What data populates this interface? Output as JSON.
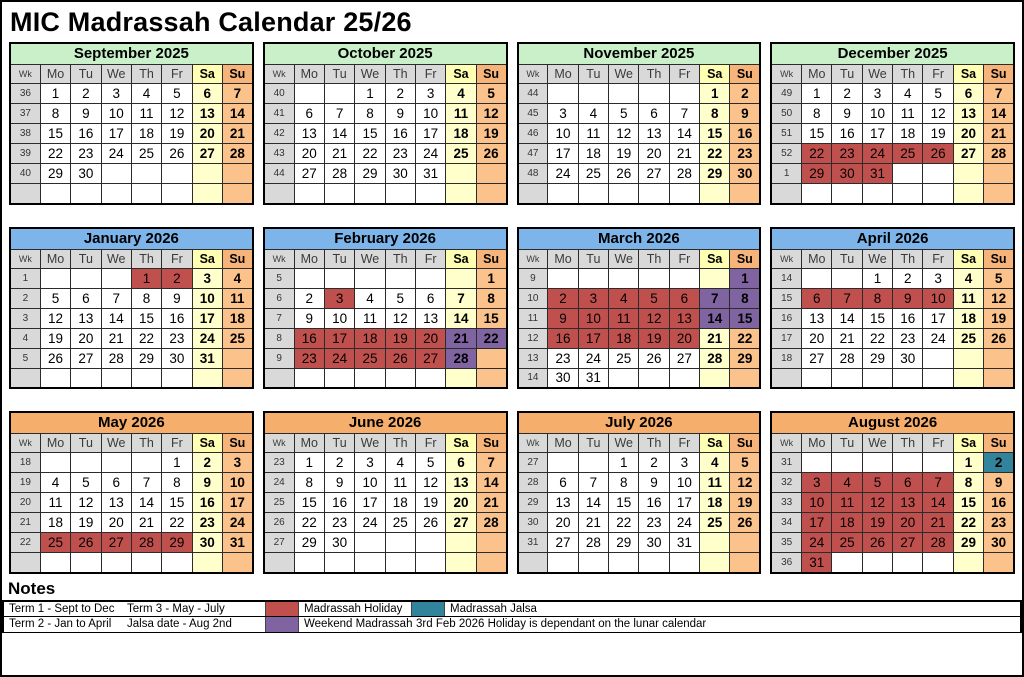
{
  "page_title": "MIC Madrassah Calendar 25/26",
  "colors": {
    "green": "#c9f0c9",
    "blue": "#7db5ea",
    "orange": "#f6ae6d",
    "saturday_header": "#ffffb3",
    "saturday_cell": "#ffffcc",
    "sunday_header": "#f6b47a",
    "sunday_cell": "#fbc28b",
    "week_column_gray": "#d9d9d9",
    "holiday_red": "#c0504d",
    "weekend_madrassah_purple": "#8064a2",
    "jalsa_teal": "#31849b"
  },
  "legend_codes": {
    "R": "madrassah-holiday",
    "P": "weekend-madrassah",
    "T": "madrassah-jalsa"
  },
  "day_headers": [
    "Wk",
    "Mo",
    "Tu",
    "We",
    "Th",
    "Fr",
    "Sa",
    "Su"
  ],
  "months": [
    {
      "name": "September 2025",
      "header_color": "green",
      "weeks": [
        {
          "wk": "36",
          "days": [
            "1",
            "2",
            "3",
            "4",
            "5",
            "6",
            "7"
          ]
        },
        {
          "wk": "37",
          "days": [
            "8",
            "9",
            "10",
            "11",
            "12",
            "13",
            "14"
          ]
        },
        {
          "wk": "38",
          "days": [
            "15",
            "16",
            "17",
            "18",
            "19",
            "20",
            "21"
          ]
        },
        {
          "wk": "39",
          "days": [
            "22",
            "23",
            "24",
            "25",
            "26",
            "27",
            "28"
          ]
        },
        {
          "wk": "40",
          "days": [
            "29",
            "30",
            "",
            "",
            "",
            "",
            ""
          ]
        },
        {
          "wk": "",
          "days": [
            "",
            "",
            "",
            "",
            "",
            "",
            ""
          ]
        }
      ]
    },
    {
      "name": "October 2025",
      "header_color": "green",
      "weeks": [
        {
          "wk": "40",
          "days": [
            "",
            "",
            "1",
            "2",
            "3",
            "4",
            "5"
          ]
        },
        {
          "wk": "41",
          "days": [
            "6",
            "7",
            "8",
            "9",
            "10",
            "11",
            "12"
          ]
        },
        {
          "wk": "42",
          "days": [
            "13",
            "14",
            "15",
            "16",
            "17",
            "18",
            "19"
          ]
        },
        {
          "wk": "43",
          "days": [
            "20",
            "21",
            "22",
            "23",
            "24",
            "25",
            "26"
          ]
        },
        {
          "wk": "44",
          "days": [
            "27",
            "28",
            "29",
            "30",
            "31",
            "",
            ""
          ]
        },
        {
          "wk": "",
          "days": [
            "",
            "",
            "",
            "",
            "",
            "",
            ""
          ]
        }
      ]
    },
    {
      "name": "November 2025",
      "header_color": "green",
      "weeks": [
        {
          "wk": "44",
          "days": [
            "",
            "",
            "",
            "",
            "",
            "1",
            "2"
          ]
        },
        {
          "wk": "45",
          "days": [
            "3",
            "4",
            "5",
            "6",
            "7",
            "8",
            "9"
          ]
        },
        {
          "wk": "46",
          "days": [
            "10",
            "11",
            "12",
            "13",
            "14",
            "15",
            "16"
          ]
        },
        {
          "wk": "47",
          "days": [
            "17",
            "18",
            "19",
            "20",
            "21",
            "22",
            "23"
          ]
        },
        {
          "wk": "48",
          "days": [
            "24",
            "25",
            "26",
            "27",
            "28",
            "29",
            "30"
          ]
        },
        {
          "wk": "",
          "days": [
            "",
            "",
            "",
            "",
            "",
            "",
            ""
          ]
        }
      ]
    },
    {
      "name": "December 2025",
      "header_color": "green",
      "weeks": [
        {
          "wk": "49",
          "days": [
            "1",
            "2",
            "3",
            "4",
            "5",
            "6",
            "7"
          ]
        },
        {
          "wk": "50",
          "days": [
            "8",
            "9",
            "10",
            "11",
            "12",
            "13",
            "14"
          ]
        },
        {
          "wk": "51",
          "days": [
            "15",
            "16",
            "17",
            "18",
            "19",
            "20",
            "21"
          ]
        },
        {
          "wk": "52",
          "days": [
            "22R",
            "23R",
            "24R",
            "25R",
            "26R",
            "27",
            "28"
          ]
        },
        {
          "wk": "1",
          "days": [
            "29R",
            "30R",
            "31R",
            "",
            "",
            "",
            ""
          ]
        },
        {
          "wk": "",
          "days": [
            "",
            "",
            "",
            "",
            "",
            "",
            ""
          ]
        }
      ]
    },
    {
      "name": "January 2026",
      "header_color": "blue",
      "weeks": [
        {
          "wk": "1",
          "days": [
            "",
            "",
            "",
            "1R",
            "2R",
            "3",
            "4"
          ]
        },
        {
          "wk": "2",
          "days": [
            "5",
            "6",
            "7",
            "8",
            "9",
            "10",
            "11"
          ]
        },
        {
          "wk": "3",
          "days": [
            "12",
            "13",
            "14",
            "15",
            "16",
            "17",
            "18"
          ]
        },
        {
          "wk": "4",
          "days": [
            "19",
            "20",
            "21",
            "22",
            "23",
            "24",
            "25"
          ]
        },
        {
          "wk": "5",
          "days": [
            "26",
            "27",
            "28",
            "29",
            "30",
            "31",
            ""
          ]
        },
        {
          "wk": "",
          "days": [
            "",
            "",
            "",
            "",
            "",
            "",
            ""
          ]
        }
      ]
    },
    {
      "name": "February 2026",
      "header_color": "blue",
      "weeks": [
        {
          "wk": "5",
          "days": [
            "",
            "",
            "",
            "",
            "",
            "",
            "1"
          ]
        },
        {
          "wk": "6",
          "days": [
            "2",
            "3R",
            "4",
            "5",
            "6",
            "7",
            "8"
          ]
        },
        {
          "wk": "7",
          "days": [
            "9",
            "10",
            "11",
            "12",
            "13",
            "14",
            "15"
          ]
        },
        {
          "wk": "8",
          "days": [
            "16R",
            "17R",
            "18R",
            "19R",
            "20R",
            "21P",
            "22P"
          ]
        },
        {
          "wk": "9",
          "days": [
            "23R",
            "24R",
            "25R",
            "26R",
            "27R",
            "28P",
            ""
          ]
        },
        {
          "wk": "",
          "days": [
            "",
            "",
            "",
            "",
            "",
            "",
            ""
          ]
        }
      ]
    },
    {
      "name": "March 2026",
      "header_color": "blue",
      "weeks": [
        {
          "wk": "9",
          "days": [
            "",
            "",
            "",
            "",
            "",
            "",
            "1P"
          ]
        },
        {
          "wk": "10",
          "days": [
            "2R",
            "3R",
            "4R",
            "5R",
            "6R",
            "7P",
            "8P"
          ]
        },
        {
          "wk": "11",
          "days": [
            "9R",
            "10R",
            "11R",
            "12R",
            "13R",
            "14P",
            "15P"
          ]
        },
        {
          "wk": "12",
          "days": [
            "16R",
            "17R",
            "18R",
            "19R",
            "20R",
            "21",
            "22"
          ]
        },
        {
          "wk": "13",
          "days": [
            "23",
            "24",
            "25",
            "26",
            "27",
            "28",
            "29"
          ]
        },
        {
          "wk": "14",
          "days": [
            "30",
            "31",
            "",
            "",
            "",
            "",
            ""
          ]
        }
      ]
    },
    {
      "name": "April 2026",
      "header_color": "blue",
      "weeks": [
        {
          "wk": "14",
          "days": [
            "",
            "",
            "1",
            "2",
            "3",
            "4",
            "5"
          ]
        },
        {
          "wk": "15",
          "days": [
            "6R",
            "7R",
            "8R",
            "9R",
            "10R",
            "11",
            "12"
          ]
        },
        {
          "wk": "16",
          "days": [
            "13",
            "14",
            "15",
            "16",
            "17",
            "18",
            "19"
          ]
        },
        {
          "wk": "17",
          "days": [
            "20",
            "21",
            "22",
            "23",
            "24",
            "25",
            "26"
          ]
        },
        {
          "wk": "18",
          "days": [
            "27",
            "28",
            "29",
            "30",
            "",
            "",
            ""
          ]
        },
        {
          "wk": "",
          "days": [
            "",
            "",
            "",
            "",
            "",
            "",
            ""
          ]
        }
      ]
    },
    {
      "name": "May 2026",
      "header_color": "orange",
      "weeks": [
        {
          "wk": "18",
          "days": [
            "",
            "",
            "",
            "",
            "1",
            "2",
            "3"
          ]
        },
        {
          "wk": "19",
          "days": [
            "4",
            "5",
            "6",
            "7",
            "8",
            "9",
            "10"
          ]
        },
        {
          "wk": "20",
          "days": [
            "11",
            "12",
            "13",
            "14",
            "15",
            "16",
            "17"
          ]
        },
        {
          "wk": "21",
          "days": [
            "18",
            "19",
            "20",
            "21",
            "22",
            "23",
            "24"
          ]
        },
        {
          "wk": "22",
          "days": [
            "25R",
            "26R",
            "27R",
            "28R",
            "29R",
            "30",
            "31"
          ]
        },
        {
          "wk": "",
          "days": [
            "",
            "",
            "",
            "",
            "",
            "",
            ""
          ]
        }
      ]
    },
    {
      "name": "June 2026",
      "header_color": "orange",
      "weeks": [
        {
          "wk": "23",
          "days": [
            "1",
            "2",
            "3",
            "4",
            "5",
            "6",
            "7"
          ]
        },
        {
          "wk": "24",
          "days": [
            "8",
            "9",
            "10",
            "11",
            "12",
            "13",
            "14"
          ]
        },
        {
          "wk": "25",
          "days": [
            "15",
            "16",
            "17",
            "18",
            "19",
            "20",
            "21"
          ]
        },
        {
          "wk": "26",
          "days": [
            "22",
            "23",
            "24",
            "25",
            "26",
            "27",
            "28"
          ]
        },
        {
          "wk": "27",
          "days": [
            "29",
            "30",
            "",
            "",
            "",
            "",
            ""
          ]
        },
        {
          "wk": "",
          "days": [
            "",
            "",
            "",
            "",
            "",
            "",
            ""
          ]
        }
      ]
    },
    {
      "name": "July 2026",
      "header_color": "orange",
      "weeks": [
        {
          "wk": "27",
          "days": [
            "",
            "",
            "1",
            "2",
            "3",
            "4",
            "5"
          ]
        },
        {
          "wk": "28",
          "days": [
            "6",
            "7",
            "8",
            "9",
            "10",
            "11",
            "12"
          ]
        },
        {
          "wk": "29",
          "days": [
            "13",
            "14",
            "15",
            "16",
            "17",
            "18",
            "19"
          ]
        },
        {
          "wk": "30",
          "days": [
            "20",
            "21",
            "22",
            "23",
            "24",
            "25",
            "26"
          ]
        },
        {
          "wk": "31",
          "days": [
            "27",
            "28",
            "29",
            "30",
            "31",
            "",
            ""
          ]
        },
        {
          "wk": "",
          "days": [
            "",
            "",
            "",
            "",
            "",
            "",
            ""
          ]
        }
      ]
    },
    {
      "name": "August 2026",
      "header_color": "orange",
      "weeks": [
        {
          "wk": "31",
          "days": [
            "",
            "",
            "",
            "",
            "",
            "1",
            "2T"
          ]
        },
        {
          "wk": "32",
          "days": [
            "3R",
            "4R",
            "5R",
            "6R",
            "7R",
            "8",
            "9"
          ]
        },
        {
          "wk": "33",
          "days": [
            "10R",
            "11R",
            "12R",
            "13R",
            "14R",
            "15",
            "16"
          ]
        },
        {
          "wk": "34",
          "days": [
            "17R",
            "18R",
            "19R",
            "20R",
            "21R",
            "22",
            "23"
          ]
        },
        {
          "wk": "35",
          "days": [
            "24R",
            "25R",
            "26R",
            "27R",
            "28R",
            "29",
            "30"
          ]
        },
        {
          "wk": "36",
          "days": [
            "31R",
            "",
            "",
            "",
            "",
            "",
            ""
          ]
        }
      ]
    }
  ],
  "notes": {
    "title": "Notes",
    "term1": "Term 1 - Sept to Dec",
    "term2": "Term 2 - Jan to April",
    "term3": "Term 3 - May - July",
    "jalsa_date": "Jalsa date - Aug 2nd",
    "holiday_label": "Madrassah Holiday",
    "weekend_label": "Weekend Madrassah",
    "jalsa_label": "Madrassah Jalsa",
    "lunar_note": "3rd Feb 2026 Holiday is dependant on the lunar calendar"
  }
}
